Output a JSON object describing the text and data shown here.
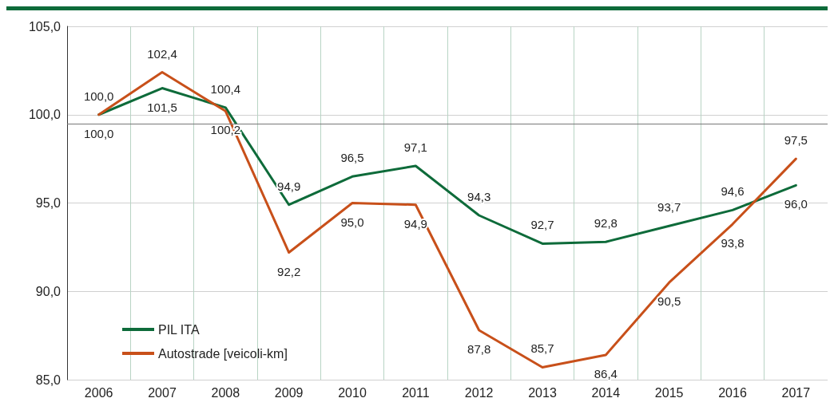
{
  "chart_data": {
    "type": "line",
    "categories": [
      "2006",
      "2007",
      "2008",
      "2009",
      "2010",
      "2011",
      "2012",
      "2013",
      "2014",
      "2015",
      "2016",
      "2017"
    ],
    "series": [
      {
        "name": "PIL ITA",
        "color": "#0e6b3a",
        "values": [
          100.0,
          101.5,
          100.4,
          94.9,
          96.5,
          97.1,
          94.3,
          92.7,
          92.8,
          93.7,
          94.6,
          96.0
        ],
        "value_labels": [
          "100,0",
          "101,5",
          "100,4",
          "94,9",
          "96,5",
          "97,1",
          "94,3",
          "92,7",
          "92,8",
          "93,7",
          "94,6",
          "96,0"
        ]
      },
      {
        "name": "Autostrade [veicoli-km]",
        "color": "#c8501a",
        "values": [
          100.0,
          102.4,
          100.2,
          92.2,
          95.0,
          94.9,
          87.8,
          85.7,
          86.4,
          90.5,
          93.8,
          97.5
        ],
        "value_labels": [
          "100,0",
          "102,4",
          "100,2",
          "92,2",
          "95,0",
          "94,9",
          "87,8",
          "85,7",
          "86,4",
          "90,5",
          "93,8",
          "97,5"
        ]
      }
    ],
    "ylim": [
      85,
      105
    ],
    "yticks": [
      {
        "value": 85,
        "label": "85,0"
      },
      {
        "value": 90,
        "label": "90,0"
      },
      {
        "value": 95,
        "label": "95,0"
      },
      {
        "value": 100,
        "label": "100,0"
      },
      {
        "value": 105,
        "label": "105,0"
      }
    ],
    "ref_lines": [
      {
        "axis": "y",
        "value": 99.5,
        "color": "#777777"
      }
    ],
    "grid": true,
    "legend": "bottom left",
    "marker": "none",
    "line_style": "solid"
  }
}
